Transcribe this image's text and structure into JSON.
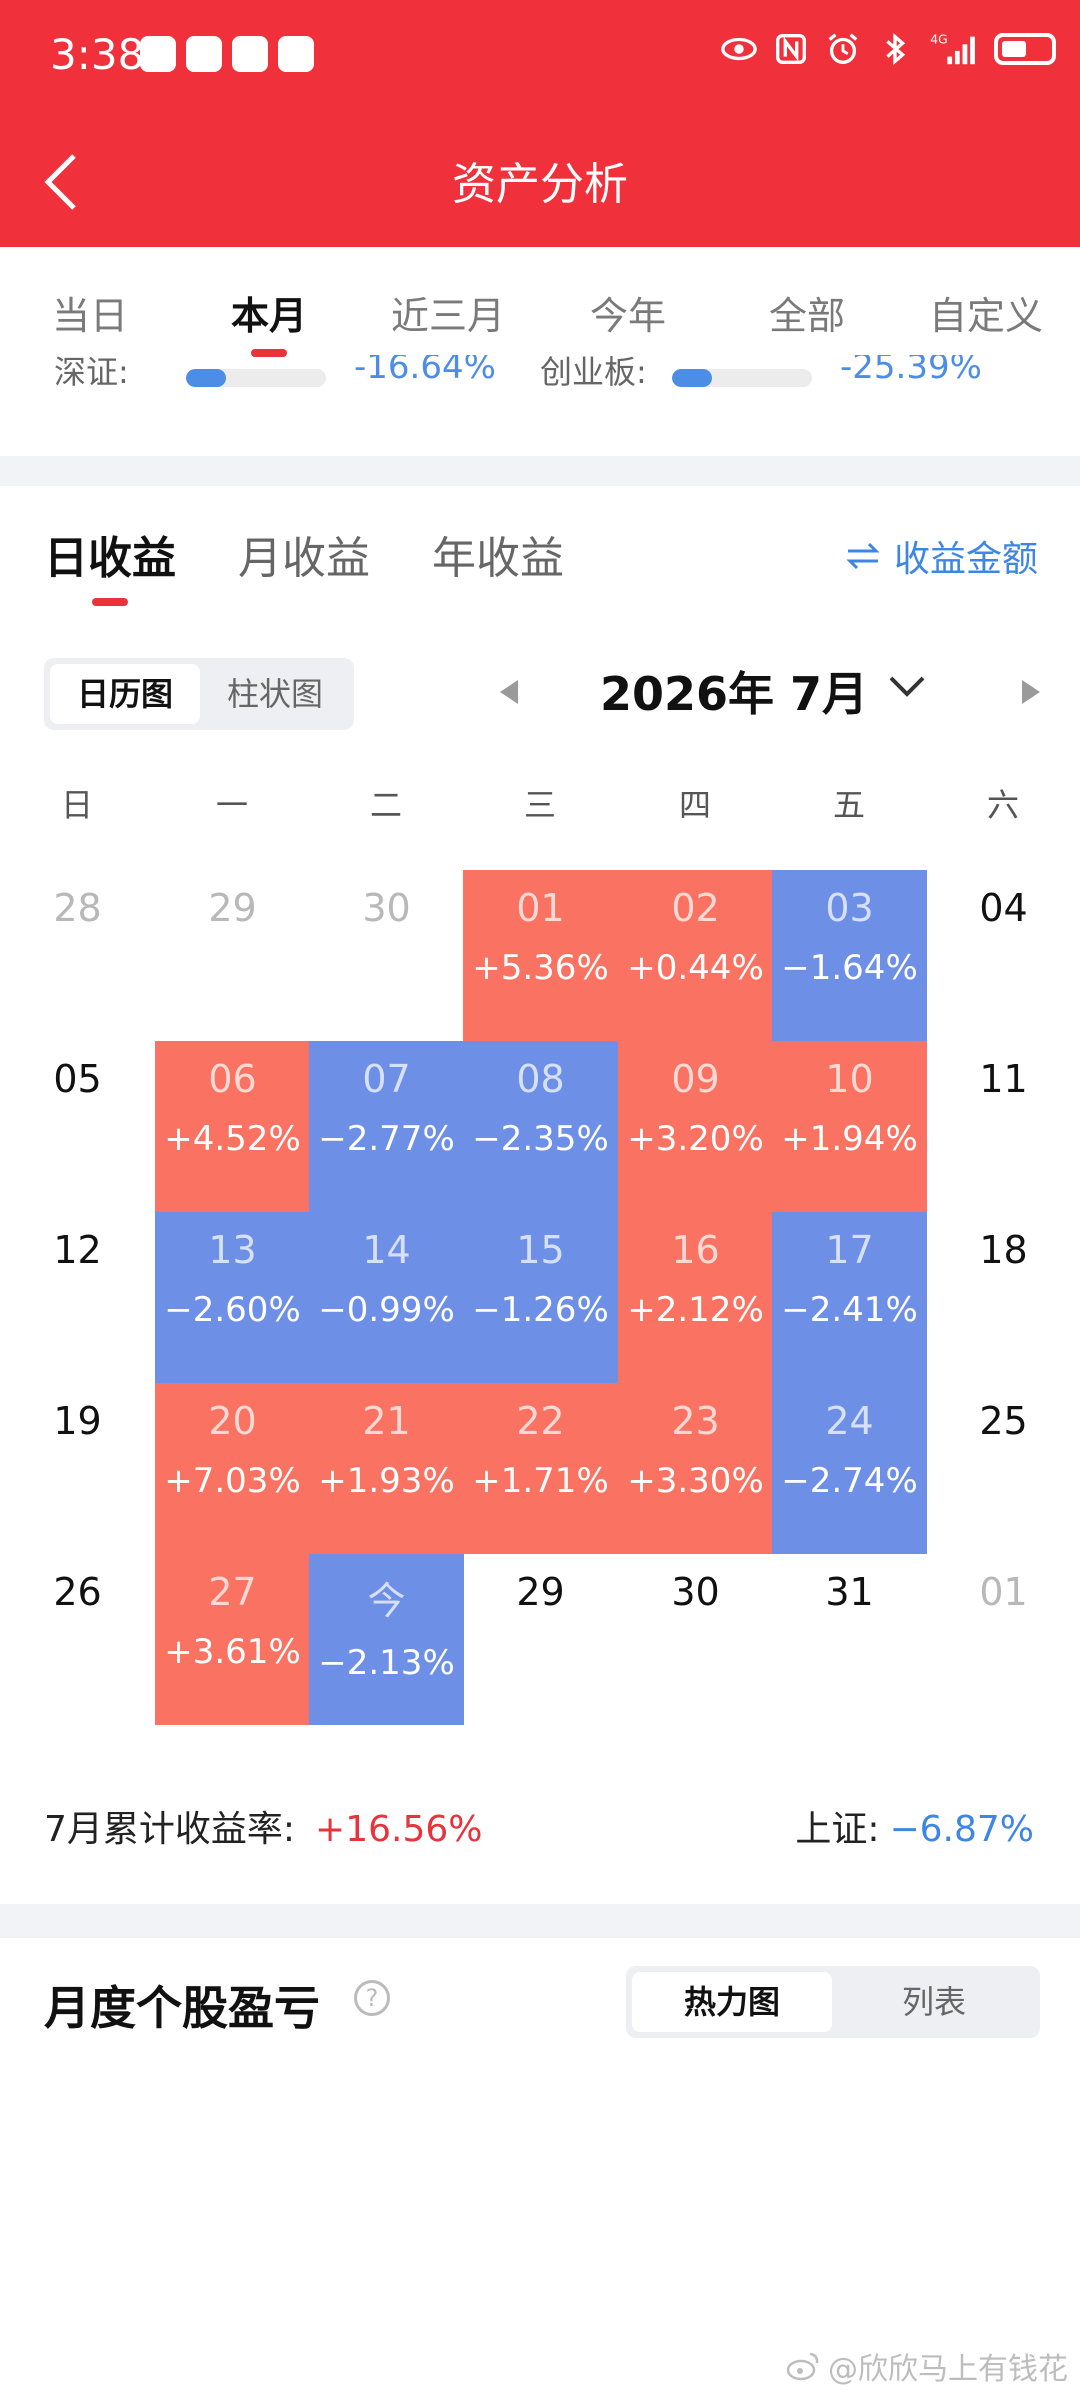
{
  "status_bar": {
    "time": "3:38",
    "network": "4G",
    "colors": {
      "background": "#f0313b"
    }
  },
  "header": {
    "title": "资产分析"
  },
  "period_tabs": {
    "items": [
      {
        "label": "当日",
        "active": false
      },
      {
        "label": "本月",
        "active": true
      },
      {
        "label": "近三月",
        "active": false
      },
      {
        "label": "今年",
        "active": false
      },
      {
        "label": "全部",
        "active": false
      },
      {
        "label": "自定义",
        "active": false
      }
    ]
  },
  "benchmarks_partial": {
    "items": [
      {
        "label": "深证:",
        "value": "-16.64%"
      },
      {
        "label": "创业板:",
        "value": "-25.39%"
      }
    ]
  },
  "income": {
    "tabs": [
      {
        "label": "日收益",
        "active": true
      },
      {
        "label": "月收益",
        "active": false
      },
      {
        "label": "年收益",
        "active": false
      }
    ],
    "switch_label": "收益金额",
    "view_toggle": [
      {
        "label": "日历图",
        "active": true
      },
      {
        "label": "柱状图",
        "active": false
      }
    ],
    "month_label": "2026年 7月",
    "weekdays": [
      "日",
      "一",
      "二",
      "三",
      "四",
      "五",
      "六"
    ],
    "weeks": [
      [
        {
          "day": "28",
          "kind": "other"
        },
        {
          "day": "29",
          "kind": "other"
        },
        {
          "day": "30",
          "kind": "other"
        },
        {
          "day": "01",
          "pct": "+5.36%",
          "kind": "up"
        },
        {
          "day": "02",
          "pct": "+0.44%",
          "kind": "up"
        },
        {
          "day": "03",
          "pct": "−1.64%",
          "kind": "down"
        },
        {
          "day": "04",
          "kind": "plain"
        }
      ],
      [
        {
          "day": "05",
          "kind": "plain"
        },
        {
          "day": "06",
          "pct": "+4.52%",
          "kind": "up"
        },
        {
          "day": "07",
          "pct": "−2.77%",
          "kind": "down"
        },
        {
          "day": "08",
          "pct": "−2.35%",
          "kind": "down"
        },
        {
          "day": "09",
          "pct": "+3.20%",
          "kind": "up"
        },
        {
          "day": "10",
          "pct": "+1.94%",
          "kind": "up"
        },
        {
          "day": "11",
          "kind": "plain"
        }
      ],
      [
        {
          "day": "12",
          "kind": "plain"
        },
        {
          "day": "13",
          "pct": "−2.60%",
          "kind": "down"
        },
        {
          "day": "14",
          "pct": "−0.99%",
          "kind": "down"
        },
        {
          "day": "15",
          "pct": "−1.26%",
          "kind": "down"
        },
        {
          "day": "16",
          "pct": "+2.12%",
          "kind": "up"
        },
        {
          "day": "17",
          "pct": "−2.41%",
          "kind": "down"
        },
        {
          "day": "18",
          "kind": "plain"
        }
      ],
      [
        {
          "day": "19",
          "kind": "plain"
        },
        {
          "day": "20",
          "pct": "+7.03%",
          "kind": "up"
        },
        {
          "day": "21",
          "pct": "+1.93%",
          "kind": "up"
        },
        {
          "day": "22",
          "pct": "+1.71%",
          "kind": "up"
        },
        {
          "day": "23",
          "pct": "+3.30%",
          "kind": "up"
        },
        {
          "day": "24",
          "pct": "−2.74%",
          "kind": "down"
        },
        {
          "day": "25",
          "kind": "plain"
        }
      ],
      [
        {
          "day": "26",
          "kind": "plain"
        },
        {
          "day": "27",
          "pct": "+3.61%",
          "kind": "up"
        },
        {
          "day": "今",
          "pct": "−2.13%",
          "kind": "down"
        },
        {
          "day": "29",
          "kind": "plain"
        },
        {
          "day": "30",
          "kind": "plain"
        },
        {
          "day": "31",
          "kind": "plain"
        },
        {
          "day": "01",
          "kind": "other"
        }
      ]
    ],
    "summary": {
      "label": "7月累计收益率:",
      "value": "+16.56%",
      "benchmark_label": "上证:",
      "benchmark_value": "−6.87%"
    },
    "colors": {
      "up": "#fa7262",
      "down": "#6d8fe6",
      "accent_red": "#e8323c",
      "accent_blue": "#3e86e4"
    }
  },
  "monthly_stock_pl": {
    "title": "月度个股盈亏",
    "toggle": [
      {
        "label": "热力图",
        "active": true
      },
      {
        "label": "列表",
        "active": false
      }
    ]
  },
  "watermark": "@欣欣马上有钱花"
}
